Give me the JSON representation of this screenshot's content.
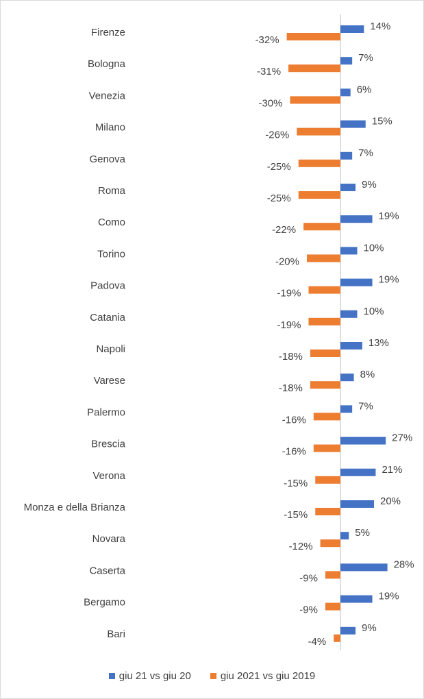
{
  "chart_data": {
    "type": "bar",
    "orientation": "horizontal",
    "categories": [
      "Firenze",
      "Bologna",
      "Venezia",
      "Milano",
      "Genova",
      "Roma",
      "Como",
      "Torino",
      "Padova",
      "Catania",
      "Napoli",
      "Varese",
      "Palermo",
      "Brescia",
      "Verona",
      "Monza e della Brianza",
      "Novara",
      "Caserta",
      "Bergamo",
      "Bari"
    ],
    "series": [
      {
        "name": "giu 21 vs giu 20",
        "color": "#4472C4",
        "values": [
          14,
          7,
          6,
          15,
          7,
          9,
          19,
          10,
          19,
          10,
          13,
          8,
          7,
          27,
          21,
          20,
          5,
          28,
          19,
          9
        ]
      },
      {
        "name": "giu 2021 vs giu 2019",
        "color": "#ED7D31",
        "values": [
          -32,
          -31,
          -30,
          -26,
          -25,
          -25,
          -22,
          -20,
          -19,
          -19,
          -18,
          -18,
          -16,
          -16,
          -15,
          -15,
          -12,
          -9,
          -9,
          -4
        ]
      }
    ],
    "value_suffix": "%",
    "grid": false,
    "legend_position": "bottom"
  }
}
